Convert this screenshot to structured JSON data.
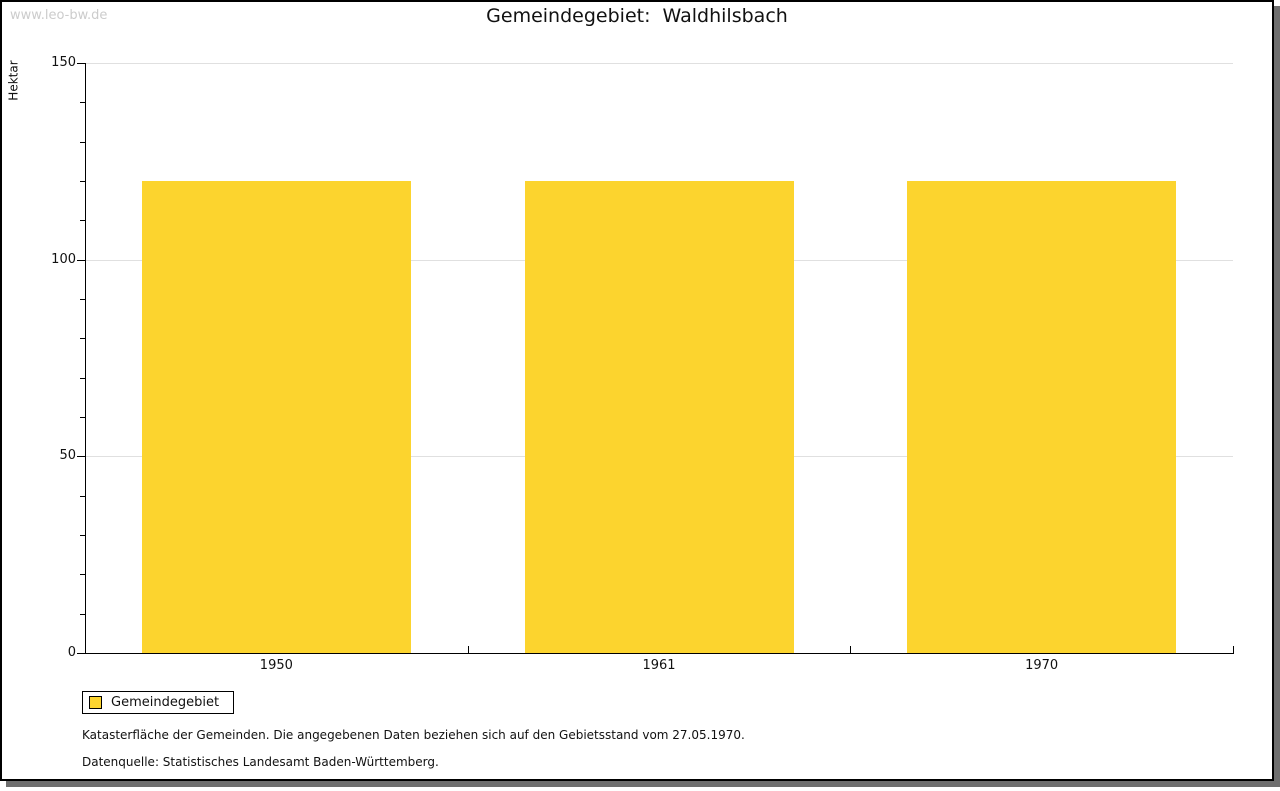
{
  "watermark": "www.leo-bw.de",
  "chart_data": {
    "type": "bar",
    "title": "Gemeindegebiet:  Waldhilsbach",
    "ylabel": "Hektar",
    "xlabel": "",
    "categories": [
      "1950",
      "1961",
      "1970"
    ],
    "series": [
      {
        "name": "Gemeindegebiet",
        "color": "#fcd42e",
        "values": [
          120,
          120,
          120
        ]
      }
    ],
    "ylim": [
      0,
      150
    ],
    "yticks": [
      0,
      50,
      100,
      150
    ],
    "y_minor_step": 10,
    "grid": true,
    "grid_color": "#e0e0e0",
    "axis_color": "#000000",
    "legend_position": "bottom-left"
  },
  "notes": [
    "Katasterfläche der Gemeinden. Die angegebenen Daten beziehen sich auf den Gebietsstand vom 27.05.1970.",
    "Datenquelle: Statistisches Landesamt Baden-Württemberg."
  ],
  "frame": {
    "background": "#ffffff",
    "border_color": "#000000",
    "shadow_color": "#6e6e6e",
    "watermark_color": "#cccccc"
  }
}
